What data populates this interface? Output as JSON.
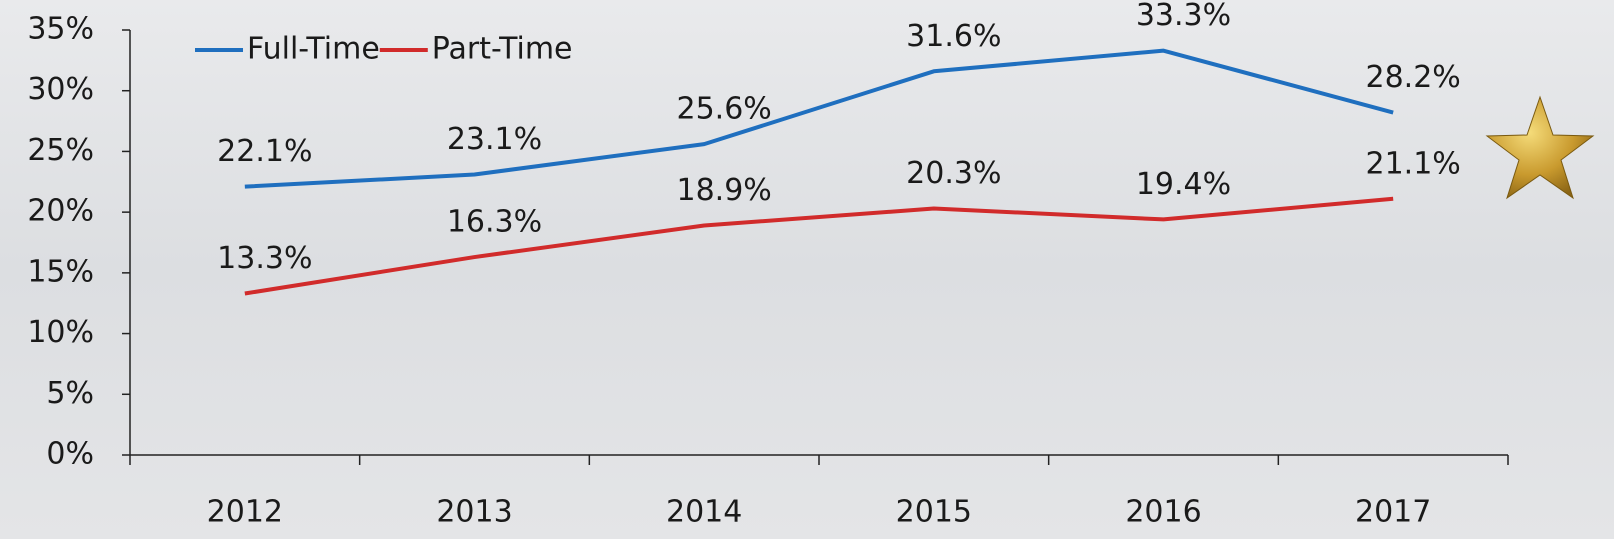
{
  "chart_data": {
    "type": "line",
    "categories": [
      "2012",
      "2013",
      "2014",
      "2015",
      "2016",
      "2017"
    ],
    "series": [
      {
        "name": "Full-Time",
        "color": "#1f6fbf",
        "values": [
          22.1,
          23.1,
          25.6,
          31.6,
          33.3,
          28.2
        ],
        "value_labels": [
          "22.1%",
          "23.1%",
          "25.6%",
          "31.6%",
          "33.3%",
          "28.2%"
        ]
      },
      {
        "name": "Part-Time",
        "color": "#d12b2b",
        "values": [
          13.3,
          16.3,
          18.9,
          20.3,
          19.4,
          21.1
        ],
        "value_labels": [
          "13.3%",
          "16.3%",
          "18.9%",
          "20.3%",
          "19.4%",
          "21.1%"
        ]
      }
    ],
    "ylim": [
      0,
      35
    ],
    "yticks": [
      {
        "value": 0,
        "label": "0%"
      },
      {
        "value": 5,
        "label": "5%"
      },
      {
        "value": 10,
        "label": "10%"
      },
      {
        "value": 15,
        "label": "15%"
      },
      {
        "value": 20,
        "label": "20%"
      },
      {
        "value": 25,
        "label": "25%"
      },
      {
        "value": 30,
        "label": "30%"
      },
      {
        "value": 35,
        "label": "35%"
      }
    ],
    "grid": false,
    "legend": "top-left"
  }
}
